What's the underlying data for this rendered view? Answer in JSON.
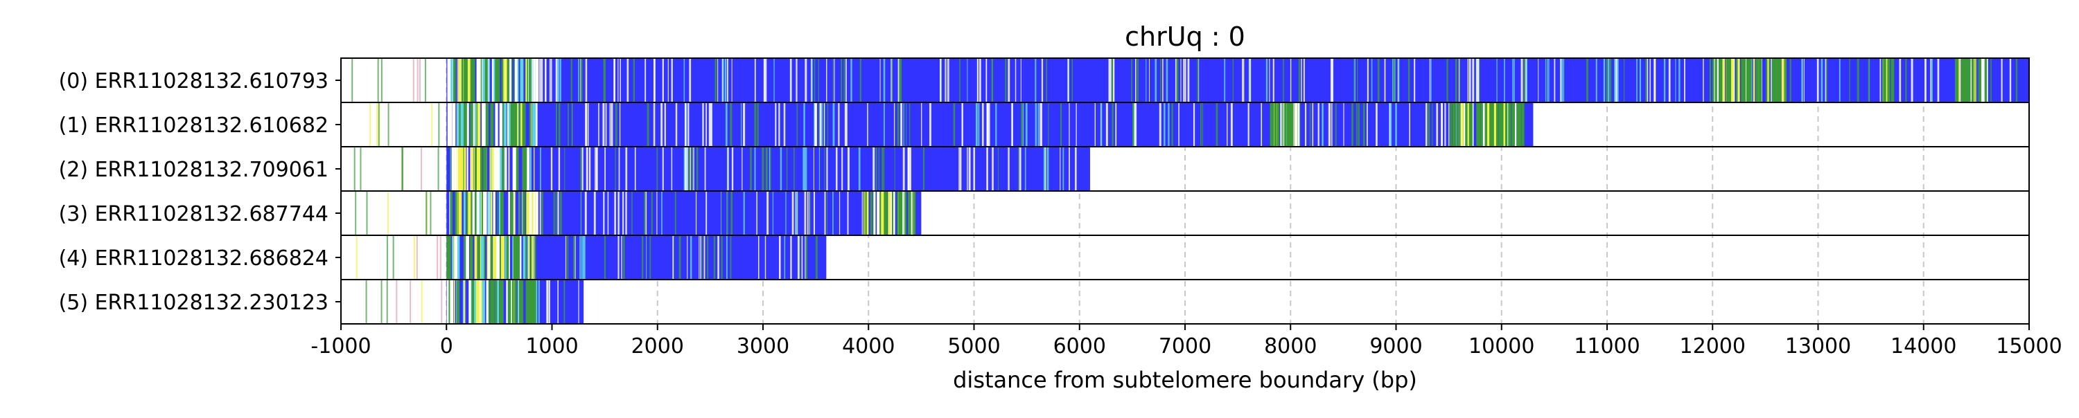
{
  "chart_data": {
    "type": "bar",
    "title": "chrUq : 0",
    "xlabel": "distance from subtelomere boundary (bp)",
    "ylabel": "",
    "xlim": [
      -1000,
      15000
    ],
    "xticks": [
      "-1000",
      "0",
      "1000",
      "2000",
      "3000",
      "4000",
      "5000",
      "6000",
      "7000",
      "8000",
      "9000",
      "10000",
      "11000",
      "12000",
      "13000",
      "14000",
      "15000"
    ],
    "grid": "vertical dashed",
    "legend": "none",
    "colors": {
      "base": "#3333ff",
      "green": "#3a9a3a",
      "yellow": "#f2f24a",
      "white": "#ffffff",
      "cyan": "#5fd3e8",
      "pink": "#e0a0b0",
      "grid": "#c8c8c8"
    },
    "reads": [
      {
        "label": "(0) ERR11028132.610793",
        "end": 15000,
        "green_regions": [
          [
            12000,
            12700
          ],
          [
            13600,
            13700
          ],
          [
            14300,
            14600
          ]
        ],
        "sparse_white_until": 14900
      },
      {
        "label": "(1) ERR11028132.610682",
        "end": 10300,
        "green_regions": [
          [
            7800,
            8100
          ],
          [
            9500,
            10200
          ]
        ],
        "sparse_white_until": 10100
      },
      {
        "label": "(2) ERR11028132.709061",
        "end": 6100,
        "green_regions": [],
        "sparse_white_until": 6000
      },
      {
        "label": "(3) ERR11028132.687744",
        "end": 4500,
        "green_regions": [
          [
            3950,
            4450
          ]
        ],
        "sparse_white_until": 4400
      },
      {
        "label": "(4) ERR11028132.686824",
        "end": 3600,
        "green_regions": [],
        "sparse_white_until": 3500
      },
      {
        "label": "(5) ERR11028132.230123",
        "end": 1300,
        "green_regions": [],
        "sparse_white_until": 1250
      }
    ]
  }
}
